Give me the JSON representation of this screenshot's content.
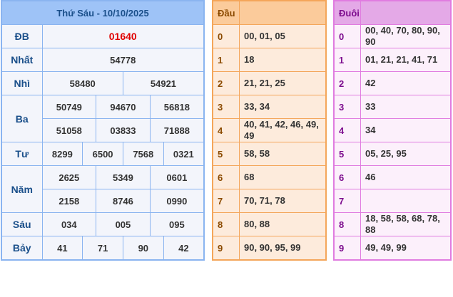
{
  "results": {
    "title": "Thứ Sáu - 10/10/2025",
    "db": {
      "label": "ĐB",
      "values": [
        "01640"
      ]
    },
    "nhat": {
      "label": "Nhất",
      "values": [
        "54778"
      ]
    },
    "nhi": {
      "label": "Nhì",
      "values": [
        "58480",
        "54921"
      ]
    },
    "ba": {
      "label": "Ba",
      "values": [
        "50749",
        "94670",
        "56818",
        "51058",
        "03833",
        "71888"
      ]
    },
    "tu": {
      "label": "Tư",
      "values": [
        "8299",
        "6500",
        "7568",
        "0321"
      ]
    },
    "nam": {
      "label": "Năm",
      "values": [
        "2625",
        "5349",
        "0601",
        "2158",
        "8746",
        "0990"
      ]
    },
    "sau": {
      "label": "Sáu",
      "values": [
        "034",
        "005",
        "095"
      ]
    },
    "bay": {
      "label": "Bảy",
      "values": [
        "41",
        "71",
        "90",
        "42"
      ]
    },
    "special_color": "#e00000"
  },
  "dau": {
    "header": "Đầu",
    "rows": [
      {
        "d": "0",
        "v": "00, 01, 05"
      },
      {
        "d": "1",
        "v": "18"
      },
      {
        "d": "2",
        "v": "21, 21, 25"
      },
      {
        "d": "3",
        "v": "33, 34"
      },
      {
        "d": "4",
        "v": "40, 41, 42, 46, 49, 49"
      },
      {
        "d": "5",
        "v": "58, 58"
      },
      {
        "d": "6",
        "v": "68"
      },
      {
        "d": "7",
        "v": "70, 71, 78"
      },
      {
        "d": "8",
        "v": "80, 88"
      },
      {
        "d": "9",
        "v": "90, 90, 95, 99"
      }
    ]
  },
  "duoi": {
    "header": "Đuôi",
    "rows": [
      {
        "d": "0",
        "v": "00, 40, 70, 80, 90, 90"
      },
      {
        "d": "1",
        "v": "01, 21, 21, 41, 71"
      },
      {
        "d": "2",
        "v": "42"
      },
      {
        "d": "3",
        "v": "33"
      },
      {
        "d": "4",
        "v": "34"
      },
      {
        "d": "5",
        "v": "05, 25, 95"
      },
      {
        "d": "6",
        "v": "46"
      },
      {
        "d": "7",
        "v": ""
      },
      {
        "d": "8",
        "v": "18, 58, 58, 68, 78, 88"
      },
      {
        "d": "9",
        "v": "49, 49, 99"
      }
    ]
  }
}
